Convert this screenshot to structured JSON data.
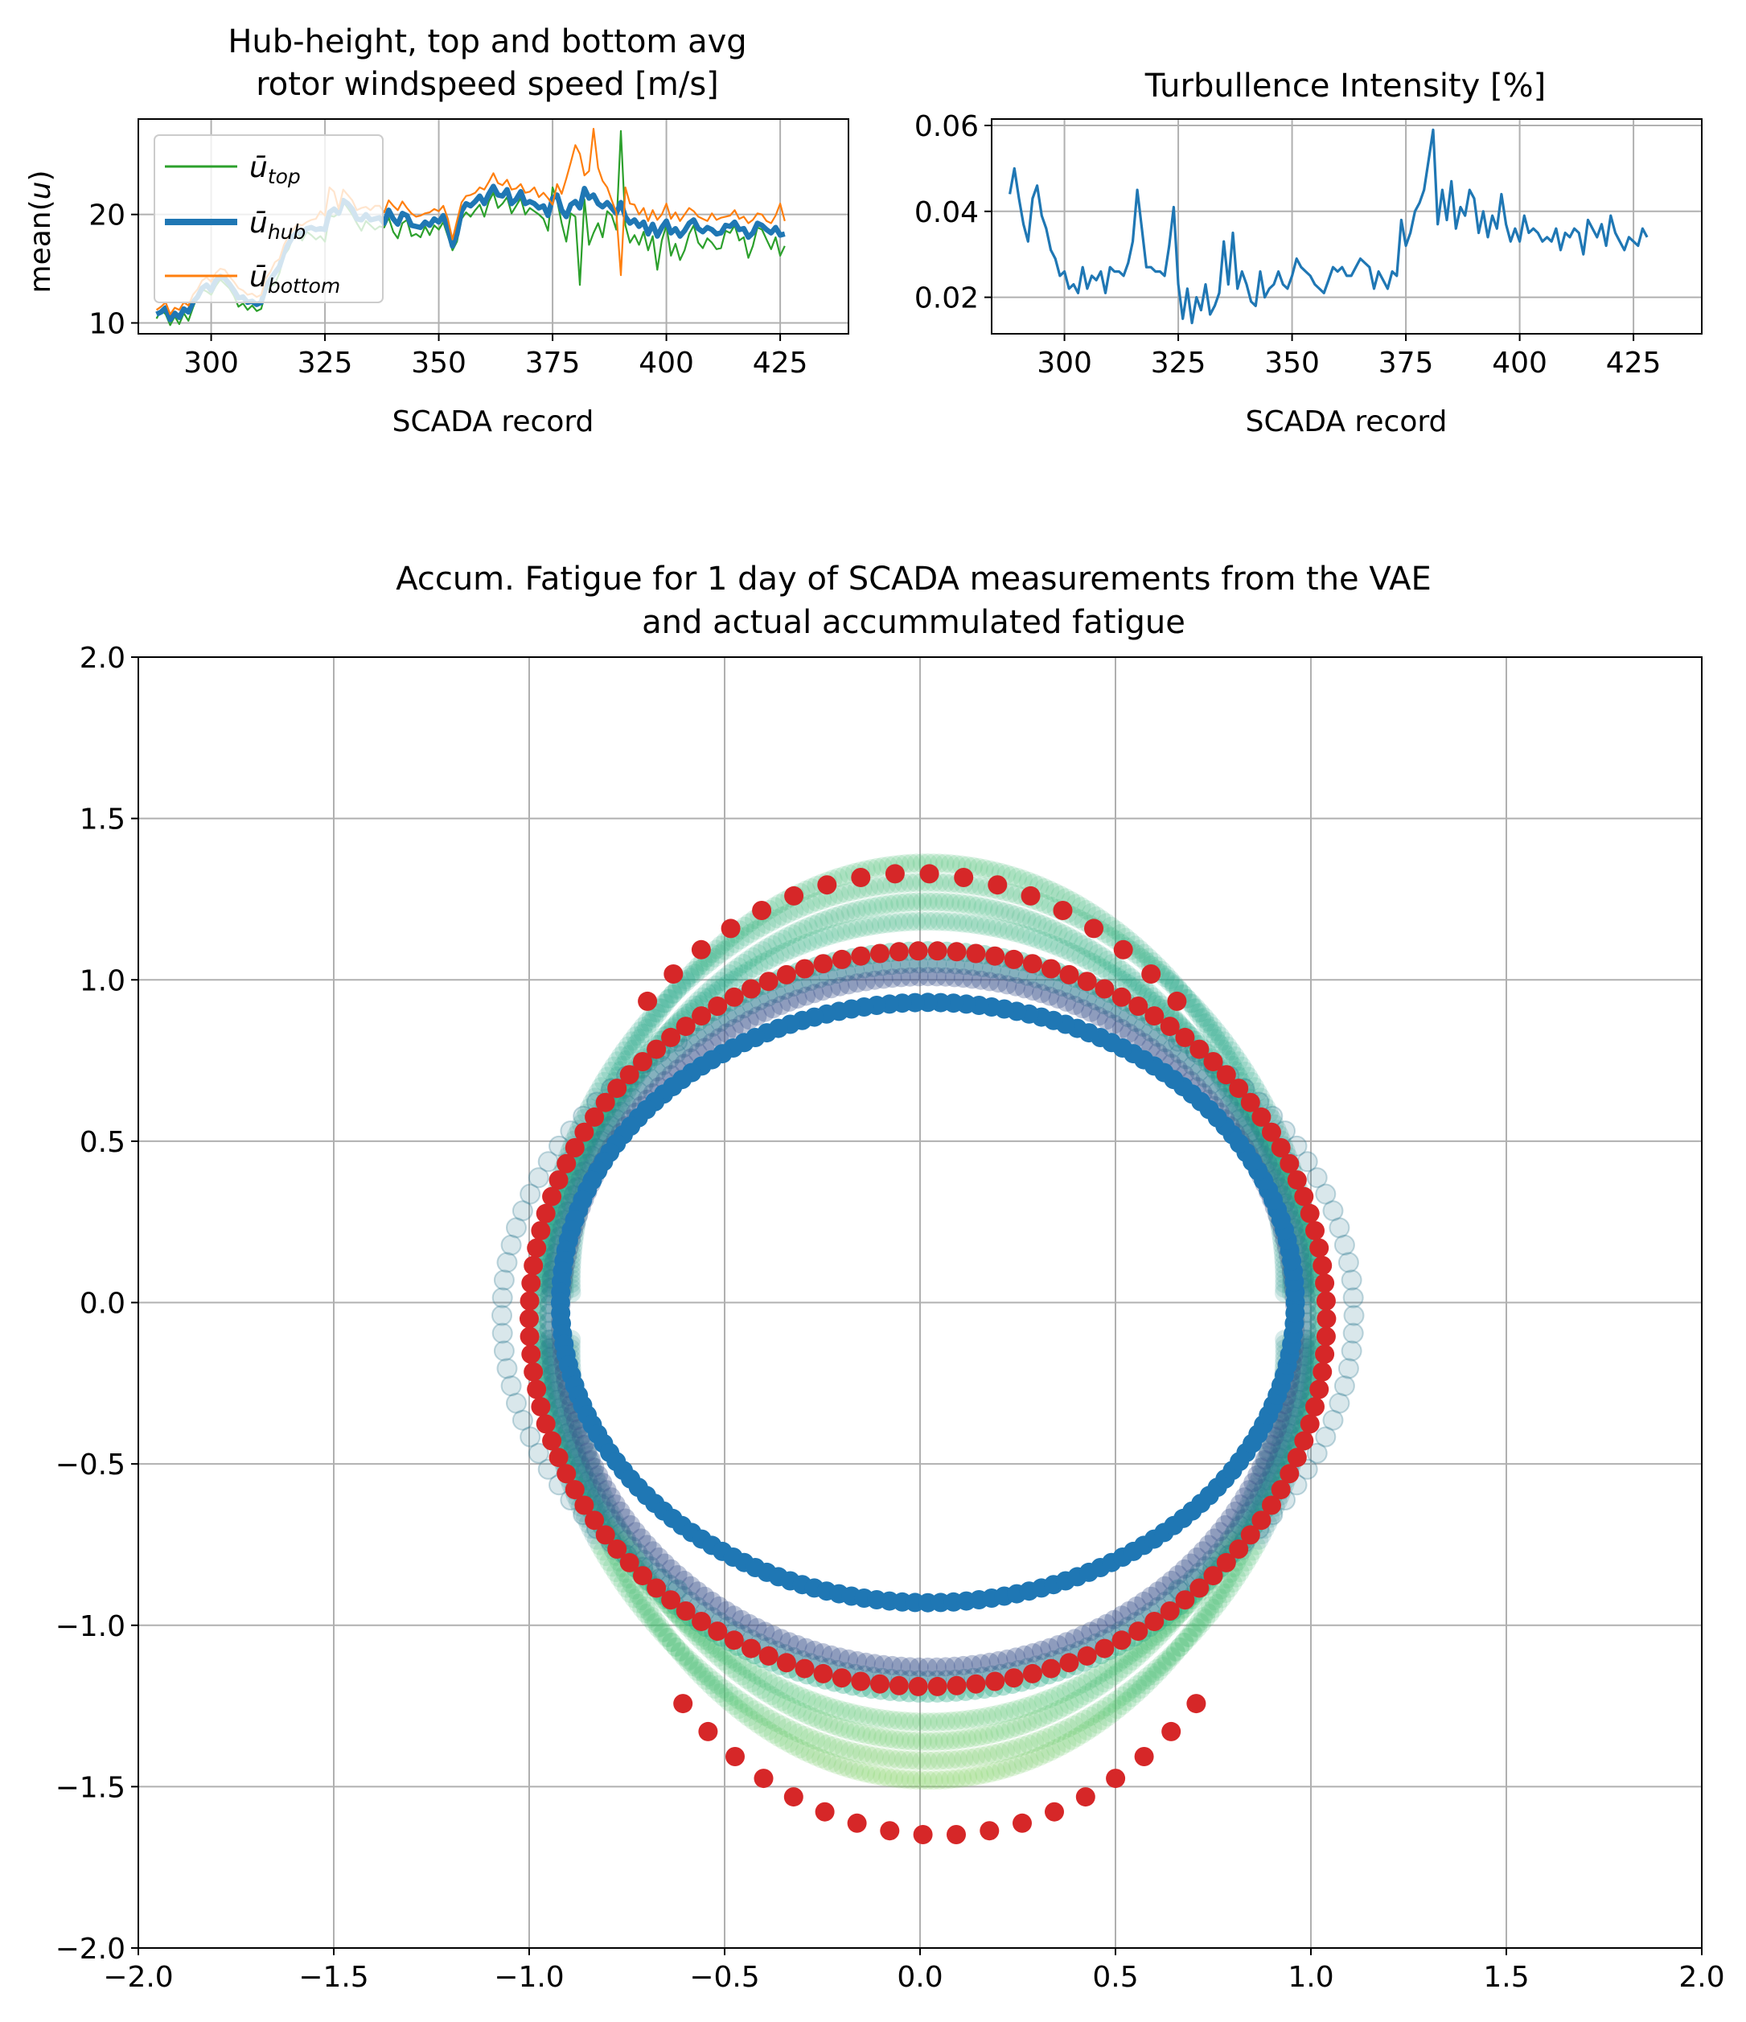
{
  "figure": {
    "colors": {
      "top": "#2ca02c",
      "hub": "#1f77b4",
      "bottom": "#ff7f0e",
      "ti": "#1f77b4",
      "actual": "#d62728",
      "vae_circle": "#1f77b4"
    }
  },
  "chart_data": [
    {
      "id": "wind",
      "type": "line",
      "title_line1": "Hub-height, top and bottom avg",
      "title_line2": "rotor windspeed speed [m/s]",
      "xlabel": "SCADA record",
      "ylabel": "mean(u)",
      "xlim": [
        284,
        440
      ],
      "ylim": [
        9.0,
        28.8
      ],
      "xticks": [
        "300",
        "325",
        "350",
        "375",
        "400",
        "425"
      ],
      "yticks": [
        "10",
        "20"
      ],
      "grid": true,
      "legend_position": "upper-left",
      "x_start": 288,
      "series": [
        {
          "name": "ū_top",
          "base": "ū",
          "sub": "top",
          "color_key": "top",
          "width": 2.2,
          "values": [
            10.4,
            11.2,
            10.8,
            9.8,
            10.6,
            9.9,
            10.9,
            10.2,
            11.4,
            12.5,
            13.1,
            12.9,
            12.6,
            13.4,
            14.0,
            13.6,
            13.2,
            12.5,
            11.5,
            11.8,
            11.2,
            11.6,
            11.1,
            11.3,
            12.9,
            13.4,
            13.6,
            14.6,
            16.2,
            16.8,
            17.9,
            18.2,
            17.6,
            18.4,
            18.1,
            17.7,
            18.0,
            17.5,
            19.9,
            19.8,
            20.1,
            21.2,
            20.6,
            20.0,
            19.2,
            18.5,
            19.4,
            19.0,
            18.6,
            18.9,
            18.8,
            19.7,
            18.4,
            17.8,
            19.2,
            19.5,
            18.0,
            18.2,
            17.9,
            18.9,
            18.1,
            19.0,
            18.6,
            19.3,
            18.0,
            16.7,
            17.5,
            19.6,
            20.2,
            19.8,
            20.4,
            20.9,
            19.8,
            21.2,
            22.0,
            20.6,
            21.0,
            21.6,
            20.1,
            20.8,
            21.5,
            20.0,
            20.6,
            20.3,
            20.0,
            19.6,
            18.5,
            22.5,
            21.3,
            19.2,
            17.5,
            20.1,
            19.8,
            13.5,
            21.4,
            17.2,
            18.3,
            19.2,
            17.9,
            20.3,
            19.9,
            18.6,
            27.7,
            19.0,
            17.4,
            18.1,
            17.2,
            18.4,
            16.7,
            18.0,
            14.9,
            17.6,
            19.0,
            16.2,
            17.3,
            15.8,
            16.7,
            18.2,
            19.0,
            17.4,
            16.9,
            17.8,
            17.4,
            16.8,
            16.9,
            18.5,
            18.3,
            19.0,
            17.6,
            17.9,
            16.0,
            17.1,
            18.8,
            18.6,
            17.7,
            16.8,
            17.9,
            16.2,
            17.1
          ]
        },
        {
          "name": "ū_hub",
          "base": "ū",
          "sub": "hub",
          "color_key": "hub",
          "width": 6.5,
          "values": [
            10.8,
            11.0,
            11.4,
            10.3,
            10.9,
            10.5,
            11.3,
            11.0,
            11.9,
            12.4,
            13.2,
            13.5,
            13.0,
            13.9,
            14.3,
            14.1,
            13.6,
            13.0,
            12.3,
            12.4,
            11.9,
            12.0,
            11.7,
            11.9,
            13.3,
            14.0,
            14.6,
            15.2,
            16.5,
            17.3,
            18.0,
            18.4,
            18.2,
            18.7,
            18.8,
            18.6,
            18.7,
            18.6,
            20.2,
            20.5,
            20.1,
            21.3,
            21.0,
            20.5,
            19.6,
            19.5,
            20.0,
            19.5,
            19.6,
            19.7,
            19.2,
            20.4,
            19.6,
            19.1,
            20.1,
            19.9,
            19.0,
            18.9,
            18.8,
            19.3,
            19.0,
            19.6,
            19.3,
            19.9,
            18.7,
            17.1,
            18.2,
            20.3,
            21.0,
            20.8,
            21.2,
            21.7,
            21.0,
            21.9,
            22.6,
            21.8,
            21.7,
            22.3,
            21.0,
            21.4,
            22.1,
            21.0,
            21.2,
            21.0,
            20.6,
            20.8,
            19.9,
            21.5,
            21.8,
            20.4,
            19.8,
            20.9,
            21.2,
            20.6,
            22.4,
            21.5,
            21.8,
            21.0,
            20.7,
            21.1,
            20.6,
            20.1,
            21.1,
            19.8,
            19.2,
            19.5,
            18.9,
            19.3,
            18.2,
            19.1,
            18.0,
            18.8,
            19.4,
            18.3,
            18.7,
            18.0,
            18.5,
            19.2,
            19.5,
            18.7,
            18.4,
            18.8,
            18.6,
            18.2,
            18.3,
            19.0,
            18.9,
            19.3,
            18.6,
            18.7,
            17.9,
            18.3,
            19.2,
            19.0,
            18.6,
            18.3,
            18.8,
            18.1,
            18.2
          ]
        },
        {
          "name": "ū_bottom",
          "base": "ū",
          "sub": "bottom",
          "color_key": "bottom",
          "width": 2.2,
          "values": [
            11.2,
            11.5,
            11.9,
            10.8,
            11.4,
            11.2,
            11.9,
            11.6,
            12.6,
            13.1,
            13.9,
            14.2,
            13.8,
            14.6,
            15.0,
            14.9,
            14.3,
            13.8,
            13.2,
            13.0,
            12.6,
            12.7,
            12.4,
            12.6,
            14.1,
            14.7,
            15.6,
            15.9,
            17.2,
            18.0,
            18.6,
            19.1,
            19.0,
            19.3,
            19.5,
            19.6,
            20.3,
            19.9,
            22.5,
            22.1,
            20.5,
            22.3,
            21.8,
            21.3,
            20.4,
            20.6,
            20.7,
            20.4,
            20.8,
            20.8,
            20.2,
            21.3,
            20.8,
            20.4,
            21.2,
            20.6,
            20.1,
            19.8,
            19.9,
            20.1,
            20.2,
            20.5,
            20.3,
            20.8,
            19.6,
            17.7,
            19.4,
            21.1,
            21.7,
            21.8,
            22.0,
            22.5,
            22.3,
            23.0,
            23.8,
            22.9,
            22.7,
            23.2,
            22.3,
            22.4,
            22.8,
            22.0,
            22.1,
            22.5,
            21.6,
            22.0,
            21.5,
            20.9,
            22.8,
            21.9,
            23.3,
            24.8,
            26.4,
            25.6,
            23.6,
            24.0,
            27.9,
            24.3,
            23.1,
            22.5,
            21.3,
            20.2,
            14.4,
            22.5,
            21.0,
            20.9,
            20.0,
            20.6,
            19.4,
            20.4,
            19.5,
            20.0,
            21.0,
            19.6,
            20.2,
            19.4,
            20.0,
            20.6,
            20.3,
            19.8,
            19.6,
            19.4,
            20.1,
            19.5,
            19.7,
            19.8,
            19.9,
            20.4,
            19.6,
            19.8,
            19.2,
            19.5,
            20.1,
            20.0,
            19.4,
            19.2,
            19.9,
            21.0,
            19.4
          ]
        }
      ]
    },
    {
      "id": "ti",
      "type": "line",
      "title": "Turbullence Intensity [%]",
      "xlabel": "SCADA record",
      "xlim": [
        284,
        440
      ],
      "ylim": [
        0.0115,
        0.0615
      ],
      "xticks": [
        "300",
        "325",
        "350",
        "375",
        "400",
        "425"
      ],
      "yticks": [
        "0.02",
        "0.04",
        "0.06"
      ],
      "grid": true,
      "x_start": 288,
      "series": [
        {
          "name": "TI",
          "color_key": "ti",
          "width": 3.2,
          "values": [
            0.044,
            0.05,
            0.043,
            0.037,
            0.033,
            0.043,
            0.046,
            0.039,
            0.036,
            0.031,
            0.029,
            0.025,
            0.026,
            0.022,
            0.023,
            0.021,
            0.027,
            0.022,
            0.025,
            0.024,
            0.026,
            0.021,
            0.027,
            0.026,
            0.026,
            0.025,
            0.028,
            0.033,
            0.045,
            0.036,
            0.027,
            0.027,
            0.026,
            0.026,
            0.025,
            0.032,
            0.041,
            0.023,
            0.015,
            0.022,
            0.014,
            0.02,
            0.017,
            0.023,
            0.016,
            0.018,
            0.021,
            0.033,
            0.023,
            0.035,
            0.022,
            0.026,
            0.023,
            0.019,
            0.018,
            0.026,
            0.02,
            0.022,
            0.023,
            0.026,
            0.023,
            0.022,
            0.025,
            0.029,
            0.027,
            0.026,
            0.025,
            0.023,
            0.022,
            0.021,
            0.024,
            0.027,
            0.026,
            0.027,
            0.025,
            0.025,
            0.027,
            0.029,
            0.028,
            0.027,
            0.022,
            0.026,
            0.024,
            0.022,
            0.026,
            0.025,
            0.038,
            0.032,
            0.035,
            0.04,
            0.042,
            0.045,
            0.052,
            0.059,
            0.037,
            0.045,
            0.038,
            0.047,
            0.036,
            0.041,
            0.039,
            0.045,
            0.043,
            0.035,
            0.04,
            0.034,
            0.039,
            0.036,
            0.044,
            0.037,
            0.033,
            0.036,
            0.033,
            0.039,
            0.035,
            0.036,
            0.035,
            0.033,
            0.034,
            0.033,
            0.036,
            0.031,
            0.035,
            0.034,
            0.036,
            0.035,
            0.03,
            0.038,
            0.036,
            0.034,
            0.037,
            0.032,
            0.039,
            0.035,
            0.033,
            0.031,
            0.034,
            0.033,
            0.032,
            0.036,
            0.034
          ]
        }
      ]
    },
    {
      "id": "fatigue",
      "type": "scatter",
      "title_line1": "Accum. Fatigue for 1 day of SCADA measurements from the VAE",
      "title_line2": "and actual accummulated fatigue",
      "xlim": [
        -2.0,
        2.0
      ],
      "ylim": [
        -2.0,
        2.0
      ],
      "xticks": [
        "−2.0",
        "−1.5",
        "−1.0",
        "−0.5",
        "0.0",
        "0.5",
        "1.0",
        "1.5",
        "2.0"
      ],
      "yticks": [
        "2.0",
        "1.5",
        "1.0",
        "0.5",
        "0.0",
        "−0.5",
        "−1.0",
        "−1.5",
        "−2.0"
      ],
      "grid": true,
      "vae_samples": {
        "note_shapes": "faded colored rings sampled by the VAE (viridis-like colors)",
        "colors": [
          "#2a788e",
          "#22a884",
          "#44bf70",
          "#7ad151",
          "#bddf26",
          "#3b528b"
        ]
      },
      "vae_circle": {
        "cx": 0.02,
        "cy": 0.0,
        "rx": 0.94,
        "ry": 0.93,
        "points": 180
      },
      "actual": {
        "rings": [
          {
            "cx": 0.02,
            "cy": -0.05,
            "rx": 1.02,
            "ry": 1.14,
            "points": 130
          },
          {
            "cx": 0.0,
            "cy": -0.18,
            "rx": 1.02,
            "ry": 1.48,
            "points": 70
          }
        ]
      }
    }
  ]
}
